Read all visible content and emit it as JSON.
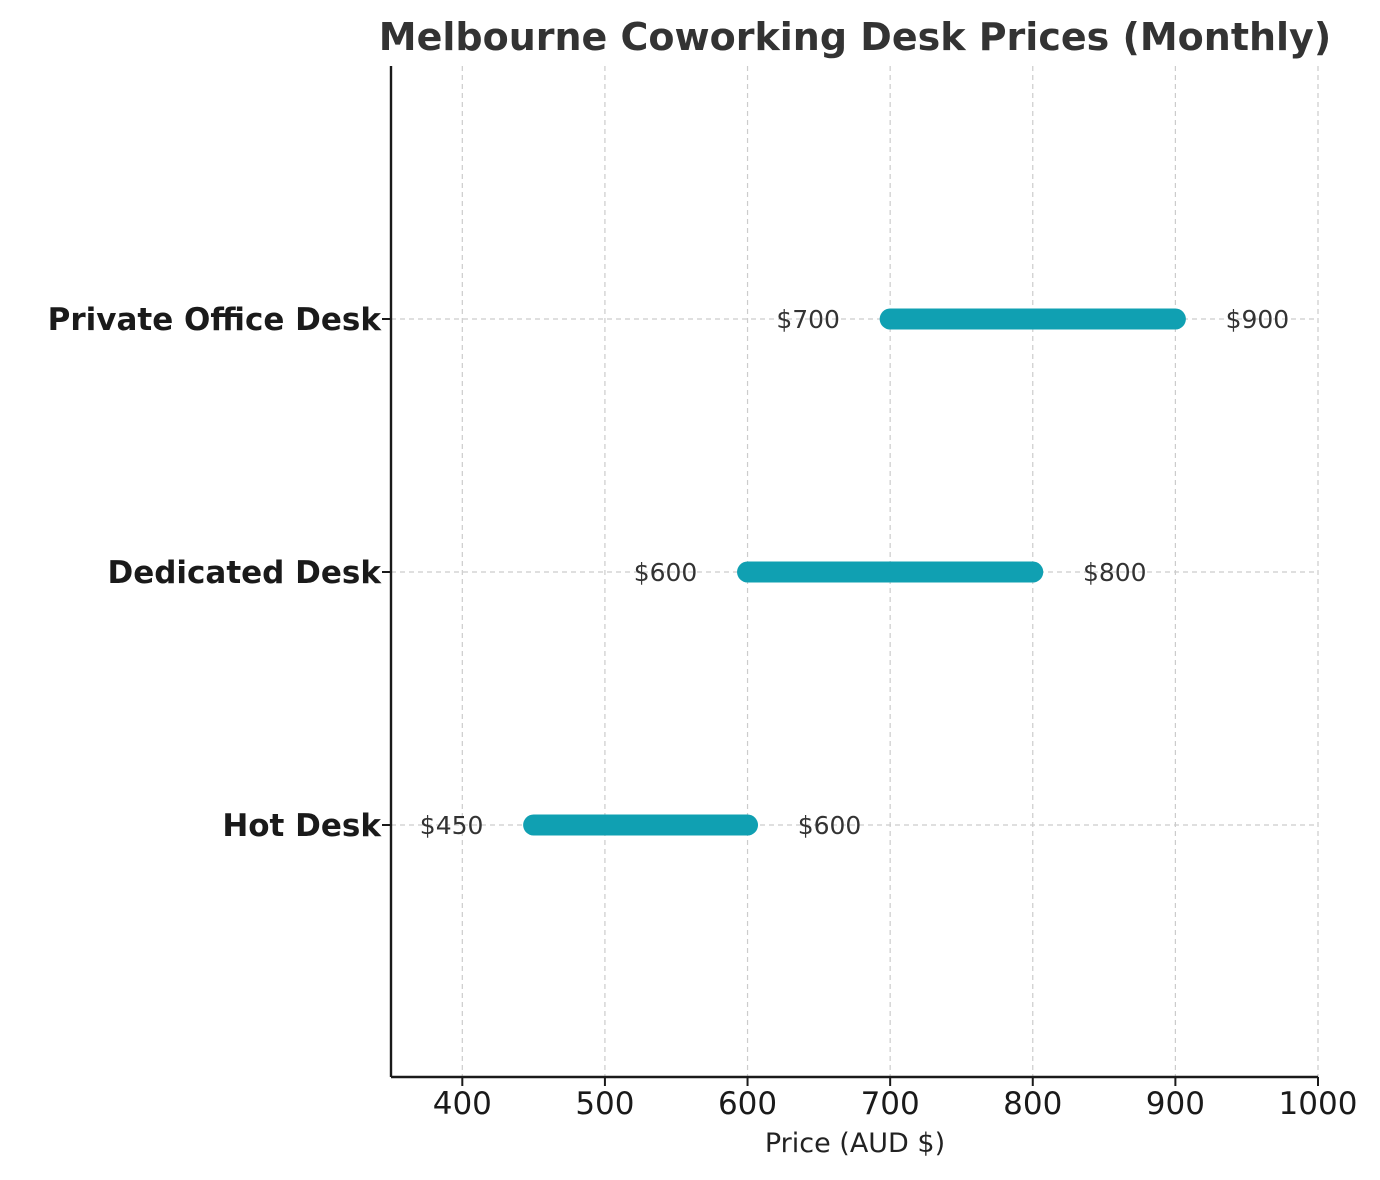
{
  "chart_data": {
    "type": "range-bar",
    "title": "Melbourne Coworking Desk Prices (Monthly)",
    "xlabel": "Price (AUD $)",
    "ylabel": "",
    "xlim": [
      350,
      1000
    ],
    "xticks": [
      400,
      500,
      600,
      700,
      800,
      900,
      1000
    ],
    "grid": true,
    "categories": [
      "Hot Desk",
      "Dedicated Desk",
      "Private Office Desk"
    ],
    "series": [
      {
        "ranges": [
          {
            "category": "Hot Desk",
            "low": 450,
            "high": 600,
            "low_label": "$450",
            "high_label": "$600"
          },
          {
            "category": "Dedicated Desk",
            "low": 600,
            "high": 800,
            "low_label": "$600",
            "high_label": "$800"
          },
          {
            "category": "Private Office Desk",
            "low": 700,
            "high": 900,
            "low_label": "$700",
            "high_label": "$900"
          }
        ]
      }
    ],
    "colors": {
      "bar": "#10a0b2",
      "grid": "#cccccc",
      "axis": "#1a1a1a"
    }
  }
}
